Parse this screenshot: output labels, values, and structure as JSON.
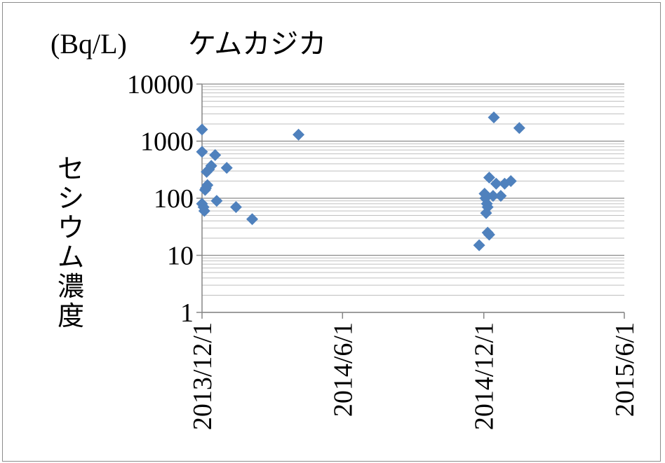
{
  "chart_data": {
    "type": "scatter",
    "title": "ケムカジカ",
    "unit_label": "(Bq/L)",
    "ylabel": "セシウム濃度",
    "xlabel": "",
    "yscale": "log",
    "ylim": [
      1,
      10000
    ],
    "xlim": [
      "2013-12-01",
      "2015-06-01"
    ],
    "y_ticks": [
      {
        "value": 1,
        "label": "1"
      },
      {
        "value": 10,
        "label": "10"
      },
      {
        "value": 100,
        "label": "100"
      },
      {
        "value": 1000,
        "label": "1000"
      },
      {
        "value": 10000,
        "label": "10000"
      }
    ],
    "x_ticks": [
      {
        "value": "2013-12-01",
        "label": "2013/12/1"
      },
      {
        "value": "2014-06-01",
        "label": "2014/6/1"
      },
      {
        "value": "2014-12-01",
        "label": "2014/12/1"
      },
      {
        "value": "2015-06-01",
        "label": "2015/6/1"
      }
    ],
    "grid": true,
    "marker": "diamond",
    "marker_color": "#4f81bd",
    "series": [
      {
        "points": [
          {
            "x": "2013-12-01",
            "y": 1600
          },
          {
            "x": "2013-12-01",
            "y": 650
          },
          {
            "x": "2013-12-01",
            "y": 80
          },
          {
            "x": "2013-12-03",
            "y": 70
          },
          {
            "x": "2013-12-04",
            "y": 60
          },
          {
            "x": "2013-12-05",
            "y": 140
          },
          {
            "x": "2013-12-06",
            "y": 150
          },
          {
            "x": "2013-12-07",
            "y": 290
          },
          {
            "x": "2013-12-08",
            "y": 170
          },
          {
            "x": "2013-12-10",
            "y": 320
          },
          {
            "x": "2013-12-13",
            "y": 370
          },
          {
            "x": "2013-12-18",
            "y": 570
          },
          {
            "x": "2013-12-20",
            "y": 90
          },
          {
            "x": "2014-01-02",
            "y": 340
          },
          {
            "x": "2014-01-14",
            "y": 70
          },
          {
            "x": "2014-02-04",
            "y": 43
          },
          {
            "x": "2014-04-05",
            "y": 1300
          },
          {
            "x": "2014-11-25",
            "y": 15
          },
          {
            "x": "2014-12-02",
            "y": 120
          },
          {
            "x": "2014-12-03",
            "y": 100
          },
          {
            "x": "2014-12-04",
            "y": 55
          },
          {
            "x": "2014-12-05",
            "y": 80
          },
          {
            "x": "2014-12-06",
            "y": 70
          },
          {
            "x": "2014-12-06",
            "y": 25
          },
          {
            "x": "2014-12-08",
            "y": 23
          },
          {
            "x": "2014-12-08",
            "y": 230
          },
          {
            "x": "2014-12-13",
            "y": 110
          },
          {
            "x": "2014-12-14",
            "y": 2600
          },
          {
            "x": "2014-12-17",
            "y": 180
          },
          {
            "x": "2014-12-23",
            "y": 110
          },
          {
            "x": "2014-12-28",
            "y": 180
          },
          {
            "x": "2015-01-05",
            "y": 200
          },
          {
            "x": "2015-01-16",
            "y": 1700
          }
        ]
      }
    ]
  }
}
